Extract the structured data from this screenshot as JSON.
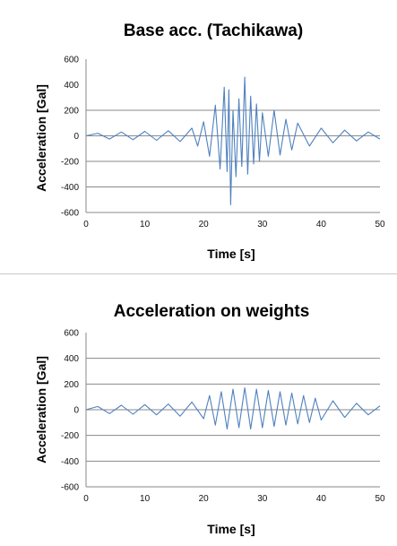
{
  "chart_data": [
    {
      "type": "line",
      "title": "Base acc. (Tachikawa)",
      "xlabel": "Time [s]",
      "ylabel": "Acceleration [Gal]",
      "xlim": [
        0,
        50
      ],
      "ylim": [
        -600,
        600
      ],
      "x_ticks": [
        0,
        10,
        20,
        30,
        40,
        50
      ],
      "y_ticks": [
        600,
        400,
        200,
        0,
        -200,
        -400,
        -600
      ],
      "x_tick_labels": [
        "0",
        "10",
        "20",
        "30",
        "40",
        "50"
      ],
      "y_tick_labels": [
        "600",
        "400",
        "200",
        "0",
        "-200",
        "-400",
        "-600"
      ],
      "gridlines_y": [
        200,
        0,
        -200,
        -400,
        -600
      ],
      "grid": "horizontal",
      "color": "#4f81bd",
      "series": [
        {
          "x": [
            0,
            2,
            4,
            6,
            8,
            10,
            12,
            14,
            16,
            18,
            19,
            20,
            21,
            22,
            22.8,
            23.5,
            24,
            24.3,
            24.6,
            25,
            25.5,
            26,
            26.5,
            27,
            27.5,
            28,
            28.5,
            29,
            29.5,
            30,
            31,
            32,
            33,
            34,
            35,
            36,
            38,
            40,
            42,
            44,
            46,
            48,
            50
          ],
          "y": [
            0,
            20,
            -25,
            30,
            -30,
            35,
            -35,
            40,
            -45,
            60,
            -80,
            110,
            -160,
            240,
            -260,
            380,
            -280,
            360,
            -540,
            200,
            -320,
            290,
            -240,
            460,
            -300,
            310,
            -220,
            250,
            -200,
            180,
            -160,
            200,
            -150,
            130,
            -110,
            100,
            -80,
            60,
            -55,
            45,
            -40,
            30,
            -25
          ]
        }
      ]
    },
    {
      "type": "line",
      "title": "Acceleration on weights",
      "xlabel": "Time [s]",
      "ylabel": "Acceleration [Gal]",
      "xlim": [
        0,
        50
      ],
      "ylim": [
        -600,
        600
      ],
      "x_ticks": [
        0,
        10,
        20,
        30,
        40,
        50
      ],
      "y_ticks": [
        600,
        400,
        200,
        0,
        -200,
        -400,
        -600
      ],
      "x_tick_labels": [
        "0",
        "10",
        "20",
        "30",
        "40",
        "50"
      ],
      "y_tick_labels": [
        "600",
        "400",
        "200",
        "0",
        "-200",
        "-400",
        "-600"
      ],
      "gridlines_y": [
        400,
        200,
        0,
        -200,
        -400,
        -600
      ],
      "grid": "horizontal",
      "color": "#4f81bd",
      "series": [
        {
          "x": [
            0,
            2,
            4,
            6,
            8,
            10,
            12,
            14,
            16,
            18,
            20,
            21,
            22,
            23,
            24,
            25,
            26,
            27,
            28,
            29,
            30,
            31,
            32,
            33,
            34,
            35,
            36,
            37,
            38,
            39,
            40,
            42,
            44,
            46,
            48,
            50
          ],
          "y": [
            0,
            25,
            -30,
            35,
            -35,
            40,
            -40,
            45,
            -50,
            60,
            -70,
            110,
            -120,
            140,
            -150,
            160,
            -140,
            170,
            -150,
            160,
            -140,
            150,
            -130,
            140,
            -120,
            130,
            -110,
            110,
            -100,
            90,
            -80,
            70,
            -60,
            50,
            -40,
            30
          ]
        }
      ]
    }
  ]
}
